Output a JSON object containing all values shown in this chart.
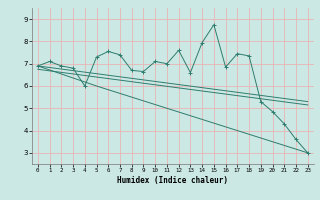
{
  "title": "",
  "xlabel": "Humidex (Indice chaleur)",
  "ylabel": "",
  "bg_color": "#cce8e4",
  "grid_color": "#e8b4b4",
  "line_color": "#2e7d6e",
  "ylim": [
    2.5,
    9.5
  ],
  "xlim": [
    -0.5,
    23.5
  ],
  "yticks": [
    3,
    4,
    5,
    6,
    7,
    8,
    9
  ],
  "xticks": [
    0,
    1,
    2,
    3,
    4,
    5,
    6,
    7,
    8,
    9,
    10,
    11,
    12,
    13,
    14,
    15,
    16,
    17,
    18,
    19,
    20,
    21,
    22,
    23
  ],
  "line1_x": [
    0,
    1,
    2,
    3,
    4,
    5,
    6,
    7,
    8,
    9,
    10,
    11,
    12,
    13,
    14,
    15,
    16,
    17,
    18,
    19,
    20,
    21,
    22,
    23
  ],
  "line1_y": [
    6.9,
    7.1,
    6.9,
    6.8,
    6.0,
    7.3,
    7.55,
    7.4,
    6.7,
    6.65,
    7.1,
    7.0,
    7.6,
    6.6,
    7.95,
    8.75,
    6.85,
    7.45,
    7.35,
    5.3,
    4.85,
    4.3,
    3.6,
    3.0
  ],
  "line2_x": [
    0,
    5,
    23
  ],
  "line2_y": [
    6.9,
    6.0,
    3.0
  ],
  "line3_x": [
    0,
    23
  ],
  "line3_y": [
    6.9,
    5.3
  ],
  "line4_x": [
    0,
    23
  ],
  "line4_y": [
    6.75,
    5.15
  ]
}
